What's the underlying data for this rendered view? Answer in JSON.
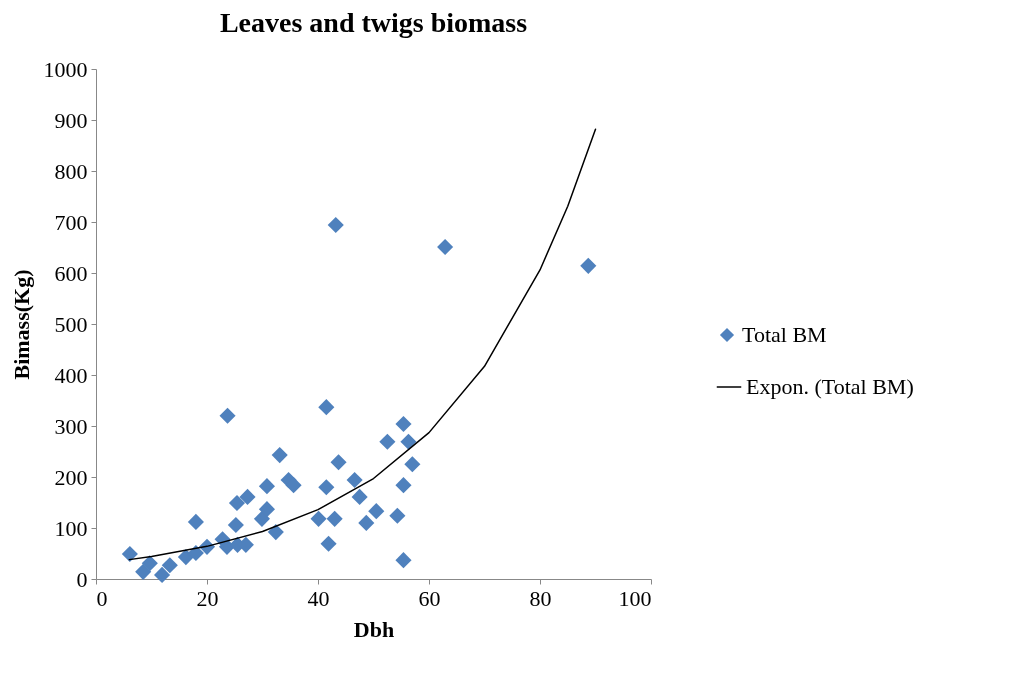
{
  "chart_data": {
    "type": "scatter",
    "title": "Leaves and twigs biomass",
    "xlabel": "Dbh",
    "ylabel": "Bimass(Kg)",
    "xlim": [
      0,
      100
    ],
    "xticks": [
      0,
      20,
      40,
      60,
      80,
      100
    ],
    "ylim": [
      0,
      1000
    ],
    "yticks": [
      0,
      100,
      200,
      300,
      400,
      500,
      600,
      700,
      800,
      900,
      {
        "value": 1000,
        "label": "1000"
      }
    ],
    "grid": false,
    "legend": "right",
    "marker": "diamond",
    "series": [
      {
        "name": "Total BM",
        "color": "#4f81bd",
        "x": [
          6.1,
          8.5,
          9.7,
          11.9,
          13.3,
          16.2,
          18,
          18,
          20,
          22.8,
          23.6,
          23.7,
          25.2,
          25.4,
          25.5,
          27.3,
          27,
          29.9,
          30.8,
          30.8,
          32.4,
          33.1,
          34.7,
          35.6,
          40.1,
          41.5,
          41.5,
          41.9,
          43,
          43.2,
          43.7,
          46.6,
          47.5,
          48.7,
          50.5,
          52.5,
          54.3,
          55.4,
          55.4,
          55.4,
          56.3,
          57,
          62.9,
          88.7
        ],
        "values": [
          49,
          14,
          31,
          8,
          27,
          43,
          51,
          112,
          63,
          78,
          63,
          320,
          106,
          149,
          67,
          161,
          67,
          118,
          137,
          182,
          92,
          243,
          194,
          184,
          118,
          180,
          337,
          69,
          118,
          694,
          229,
          194,
          161,
          110,
          133,
          269,
          124,
          304,
          184,
          37,
          269,
          225,
          651,
          614
        ]
      },
      {
        "name": "Expon. (Total BM)",
        "type": "line",
        "color": "#000000",
        "line_style": "solid",
        "marker": "none",
        "x": [
          6,
          10,
          20,
          30,
          40,
          50,
          60,
          70,
          80,
          85,
          90
        ],
        "values": [
          38,
          44,
          64,
          93,
          136,
          197,
          287,
          417,
          606,
          731,
          882
        ]
      }
    ]
  }
}
